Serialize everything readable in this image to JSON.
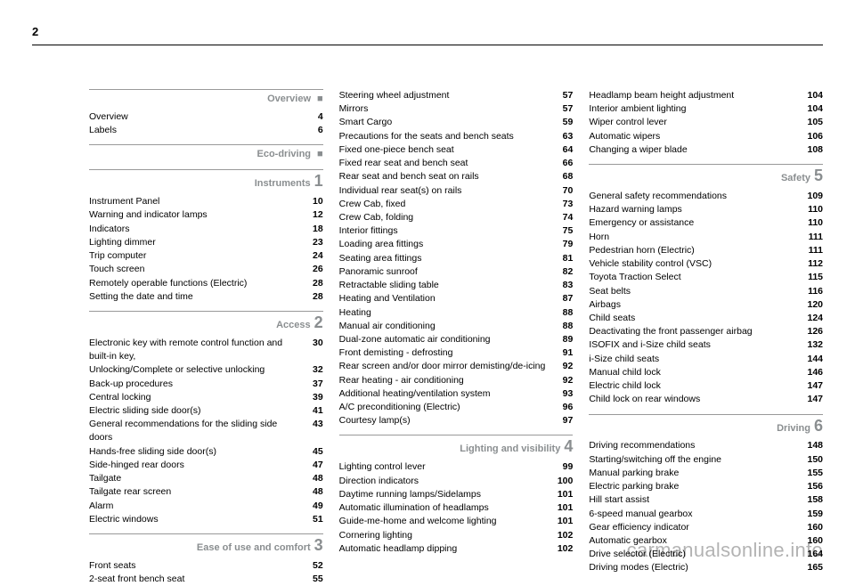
{
  "page_number": "2",
  "watermark": "carmanualsonline.info",
  "columns": [
    {
      "blocks": [
        {
          "type": "section",
          "first": true,
          "title": "Overview",
          "marker": "bullet"
        },
        {
          "type": "entries",
          "items": [
            {
              "label": "Overview",
              "page": "4"
            },
            {
              "label": "Labels",
              "page": "6"
            }
          ]
        },
        {
          "type": "section",
          "title": "Eco-driving",
          "marker": "bullet"
        },
        {
          "type": "section",
          "title": "Instruments",
          "marker": "1"
        },
        {
          "type": "entries",
          "items": [
            {
              "label": "Instrument Panel",
              "page": "10"
            },
            {
              "label": "Warning and indicator lamps",
              "page": "12"
            },
            {
              "label": "Indicators",
              "page": "18"
            },
            {
              "label": "Lighting dimmer",
              "page": "23"
            },
            {
              "label": "Trip computer",
              "page": "24"
            },
            {
              "label": "Touch screen",
              "page": "26"
            },
            {
              "label": "Remotely operable functions (Electric)",
              "page": "28"
            },
            {
              "label": "Setting the date and time",
              "page": "28"
            }
          ]
        },
        {
          "type": "section",
          "title": "Access",
          "marker": "2"
        },
        {
          "type": "entries",
          "items": [
            {
              "label": "Electronic key with remote control function and built-in key,",
              "page": "30"
            },
            {
              "label": "Unlocking/Complete or selective unlocking",
              "page": "32"
            },
            {
              "label": "Back-up procedures",
              "page": "37"
            },
            {
              "label": "Central locking",
              "page": "39"
            },
            {
              "label": "Electric sliding side door(s)",
              "page": "41"
            },
            {
              "label": "General recommendations for the sliding side doors",
              "page": "43"
            },
            {
              "label": "Hands-free sliding side door(s)",
              "page": "45"
            },
            {
              "label": "Side-hinged rear doors",
              "page": "47"
            },
            {
              "label": "Tailgate",
              "page": "48"
            },
            {
              "label": "Tailgate rear screen",
              "page": "48"
            },
            {
              "label": "Alarm",
              "page": "49"
            },
            {
              "label": "Electric windows",
              "page": "51"
            }
          ]
        },
        {
          "type": "section",
          "title": "Ease of use and comfort",
          "marker": "3"
        },
        {
          "type": "entries",
          "items": [
            {
              "label": "Front seats",
              "page": "52"
            },
            {
              "label": "2-seat front bench seat",
              "page": "55"
            }
          ]
        }
      ]
    },
    {
      "blocks": [
        {
          "type": "entries",
          "first": true,
          "items": [
            {
              "label": "Steering wheel adjustment",
              "page": "57"
            },
            {
              "label": "Mirrors",
              "page": "57"
            },
            {
              "label": "Smart Cargo",
              "page": "59"
            },
            {
              "label": "Precautions for the seats and bench seats",
              "page": "63"
            },
            {
              "label": "Fixed one-piece bench seat",
              "page": "64"
            },
            {
              "label": "Fixed rear seat and bench seat",
              "page": "66"
            },
            {
              "label": "Rear seat and bench seat on rails",
              "page": "68"
            },
            {
              "label": "Individual rear seat(s) on rails",
              "page": "70"
            },
            {
              "label": "Crew Cab, fixed",
              "page": "73"
            },
            {
              "label": "Crew Cab, folding",
              "page": "74"
            },
            {
              "label": "Interior fittings",
              "page": "75"
            },
            {
              "label": "Loading area fittings",
              "page": "79"
            },
            {
              "label": "Seating area fittings",
              "page": "81"
            },
            {
              "label": "Panoramic sunroof",
              "page": "82"
            },
            {
              "label": "Retractable sliding table",
              "page": "83"
            },
            {
              "label": "Heating and Ventilation",
              "page": "87"
            },
            {
              "label": "Heating",
              "page": "88"
            },
            {
              "label": "Manual air conditioning",
              "page": "88"
            },
            {
              "label": "Dual-zone automatic air conditioning",
              "page": "89"
            },
            {
              "label": "Front demisting - defrosting",
              "page": "91"
            },
            {
              "label": "Rear screen and/or door mirror demisting/de-icing",
              "page": "92"
            },
            {
              "label": "Rear heating - air conditioning",
              "page": "92"
            },
            {
              "label": "Additional heating/ventilation system",
              "page": "93"
            },
            {
              "label": "A/C preconditioning (Electric)",
              "page": "96"
            },
            {
              "label": "Courtesy lamp(s)",
              "page": "97"
            }
          ]
        },
        {
          "type": "section",
          "title": "Lighting and visibility",
          "marker": "4"
        },
        {
          "type": "entries",
          "items": [
            {
              "label": "Lighting control lever",
              "page": "99"
            },
            {
              "label": "Direction indicators",
              "page": "100"
            },
            {
              "label": "Daytime running lamps/Sidelamps",
              "page": "101"
            },
            {
              "label": "Automatic illumination of headlamps",
              "page": "101"
            },
            {
              "label": "Guide-me-home and welcome lighting",
              "page": "101"
            },
            {
              "label": "Cornering lighting",
              "page": "102"
            },
            {
              "label": "Automatic headlamp dipping",
              "page": "102"
            }
          ]
        }
      ]
    },
    {
      "blocks": [
        {
          "type": "entries",
          "first": true,
          "items": [
            {
              "label": "Headlamp beam height adjustment",
              "page": "104"
            },
            {
              "label": "Interior ambient lighting",
              "page": "104"
            },
            {
              "label": "Wiper control lever",
              "page": "105"
            },
            {
              "label": "Automatic wipers",
              "page": "106"
            },
            {
              "label": "Changing a wiper blade",
              "page": "108"
            }
          ]
        },
        {
          "type": "section",
          "title": "Safety",
          "marker": "5"
        },
        {
          "type": "entries",
          "items": [
            {
              "label": "General safety recommendations",
              "page": "109"
            },
            {
              "label": "Hazard warning lamps",
              "page": "110"
            },
            {
              "label": "Emergency or assistance",
              "page": "110"
            },
            {
              "label": "Horn",
              "page": "111"
            },
            {
              "label": "Pedestrian horn (Electric)",
              "page": "111"
            },
            {
              "label": "Vehicle stability control (VSC)",
              "page": "112"
            },
            {
              "label": "Toyota Traction Select",
              "page": "115"
            },
            {
              "label": "Seat belts",
              "page": "116"
            },
            {
              "label": "Airbags",
              "page": "120"
            },
            {
              "label": "Child seats",
              "page": "124"
            },
            {
              "label": "Deactivating the front passenger airbag",
              "page": "126"
            },
            {
              "label": "ISOFIX and i-Size child seats",
              "page": "132"
            },
            {
              "label": "i-Size child seats",
              "page": "144"
            },
            {
              "label": "Manual child lock",
              "page": "146"
            },
            {
              "label": "Electric child lock",
              "page": "147"
            },
            {
              "label": "Child lock on rear windows",
              "page": "147"
            }
          ]
        },
        {
          "type": "section",
          "title": "Driving",
          "marker": "6"
        },
        {
          "type": "entries",
          "items": [
            {
              "label": "Driving recommendations",
              "page": "148"
            },
            {
              "label": "Starting/switching off the engine",
              "page": "150"
            },
            {
              "label": "Manual parking brake",
              "page": "155"
            },
            {
              "label": "Electric parking brake",
              "page": "156"
            },
            {
              "label": "Hill start assist",
              "page": "158"
            },
            {
              "label": "6-speed manual gearbox",
              "page": "159"
            },
            {
              "label": "Gear efficiency indicator",
              "page": "160"
            },
            {
              "label": "Automatic gearbox",
              "page": "160"
            },
            {
              "label": "Drive selector (Electric)",
              "page": "164"
            },
            {
              "label": "Driving modes (Electric)",
              "page": "165"
            }
          ]
        }
      ]
    }
  ]
}
